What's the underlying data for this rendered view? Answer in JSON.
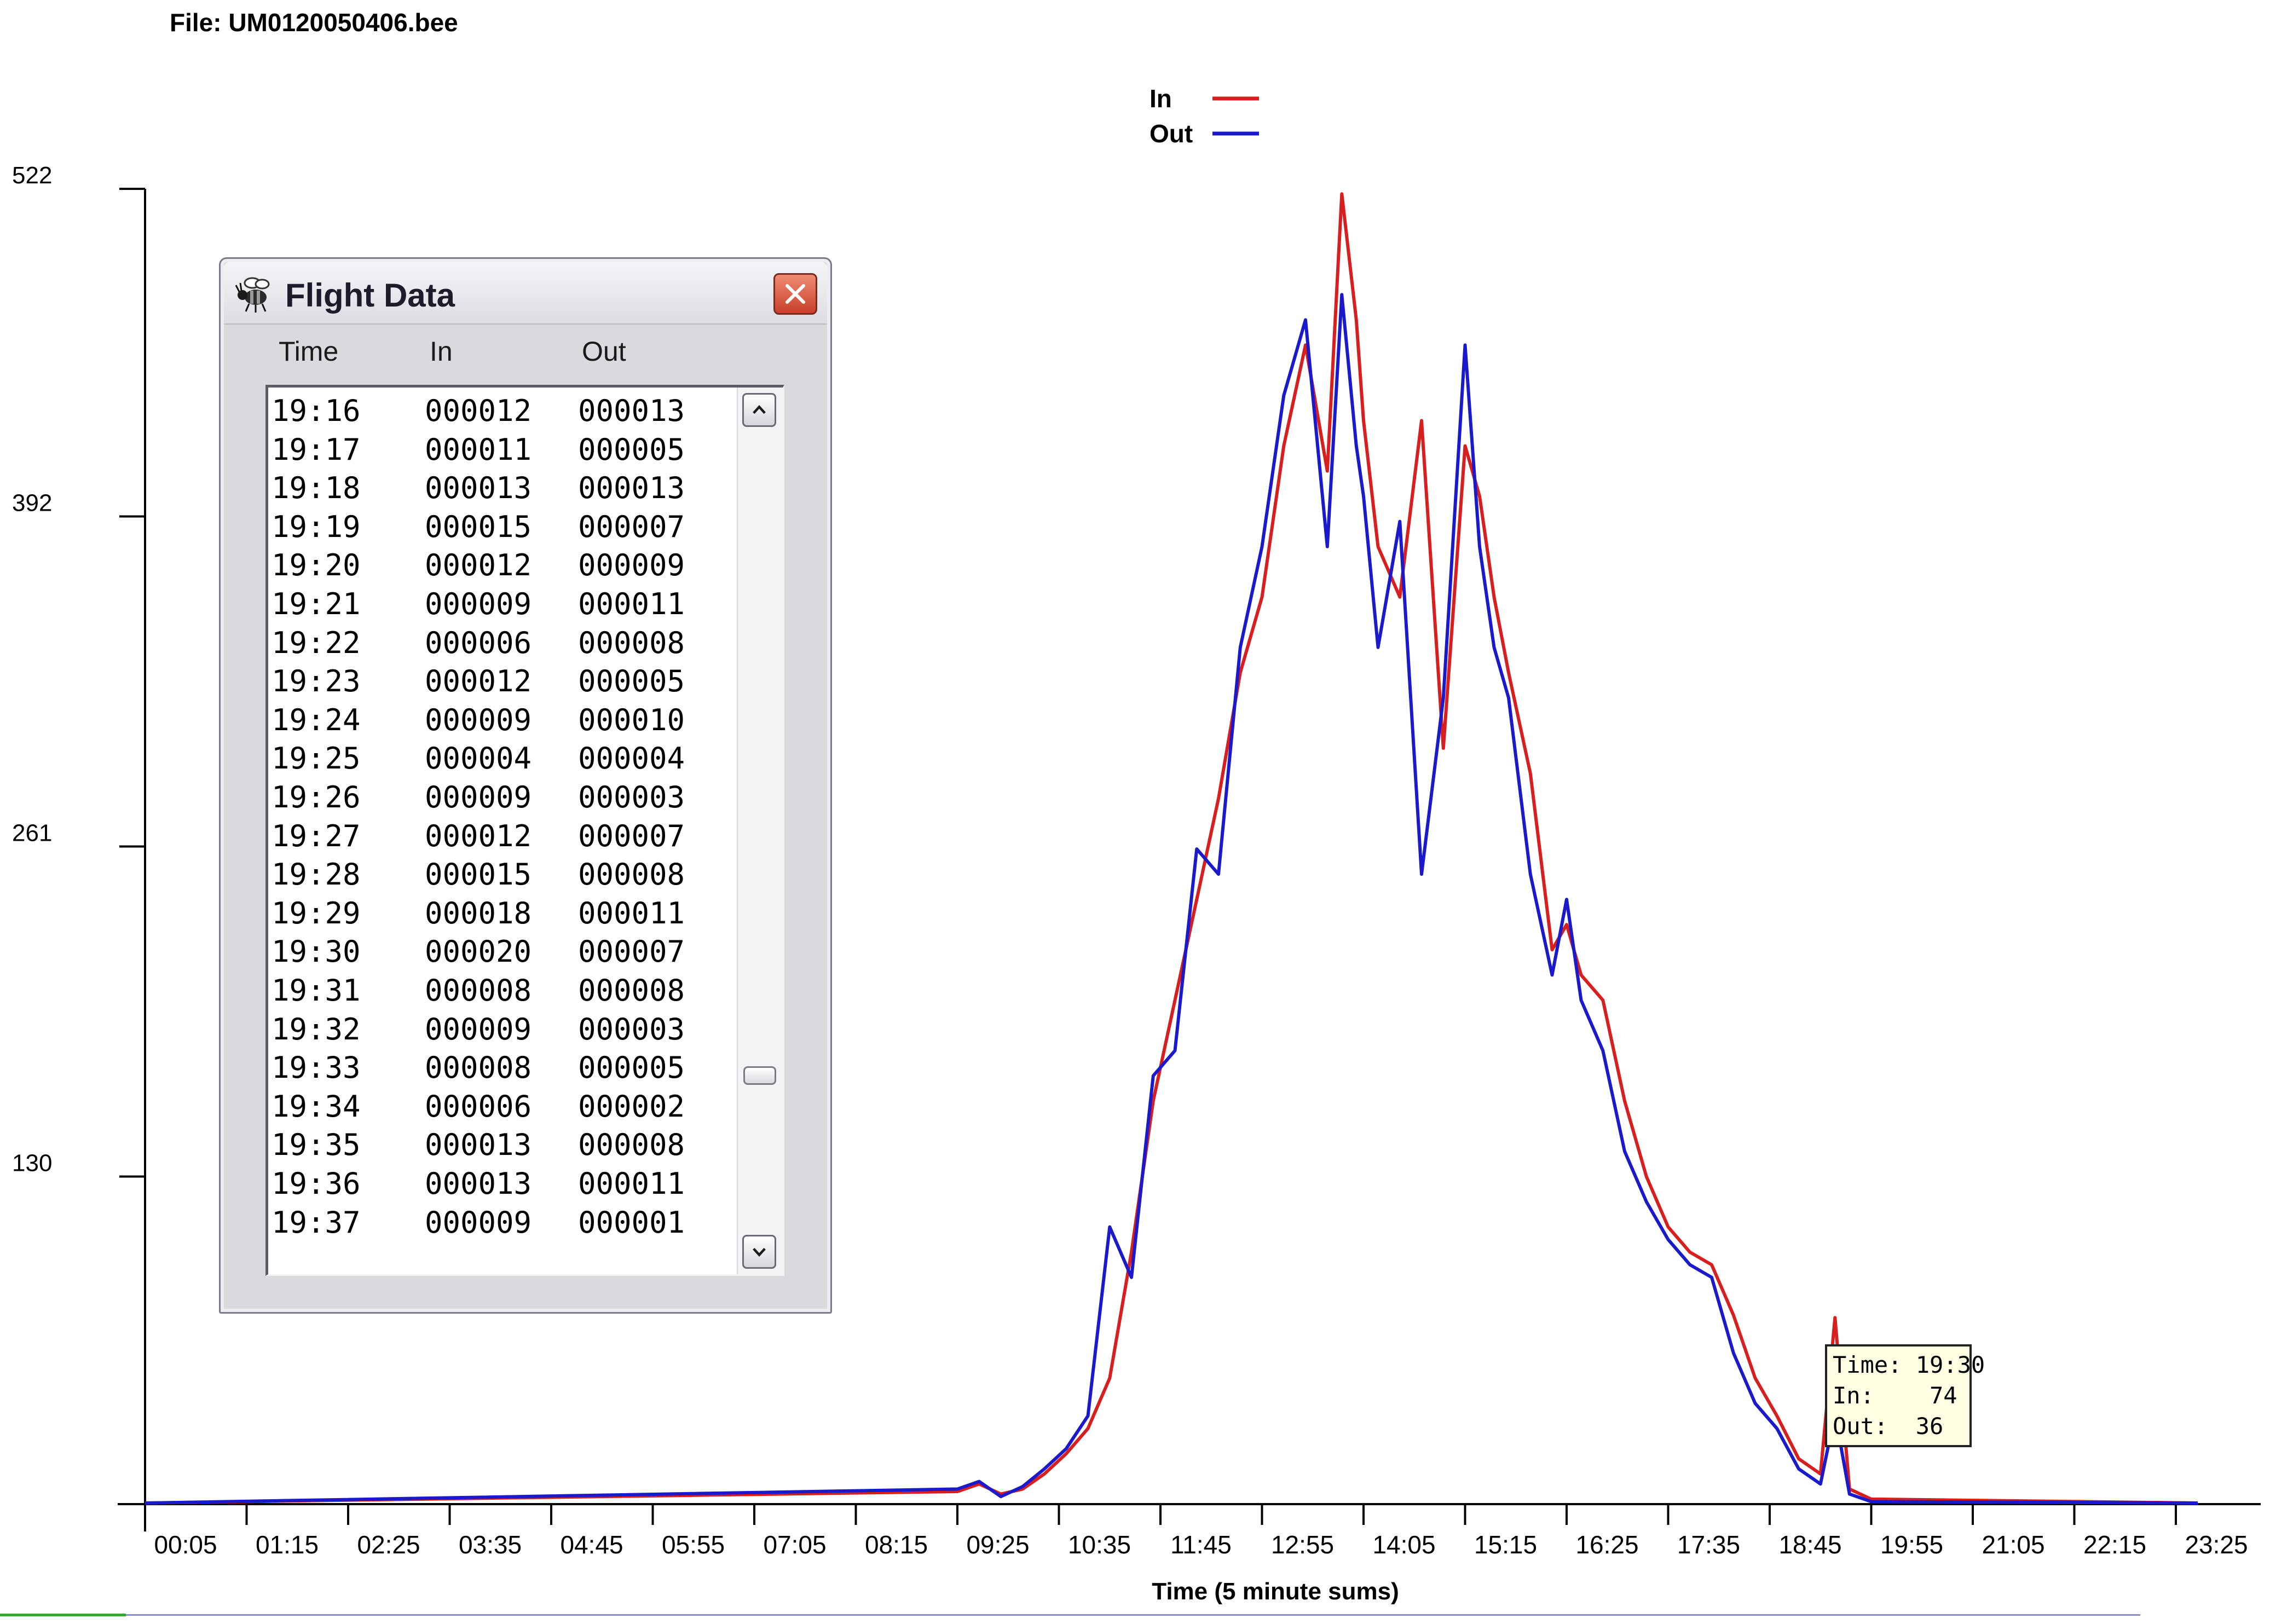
{
  "file_label": "File: UM0120050406.bee",
  "chart_data": {
    "type": "line",
    "xlabel": "Time (5 minute sums)",
    "ylabel": "",
    "y_ticks": [
      130,
      261,
      392,
      522
    ],
    "ylim": [
      0,
      522
    ],
    "x_ticks": [
      "00:05",
      "01:15",
      "02:25",
      "03:35",
      "04:45",
      "05:55",
      "07:05",
      "08:15",
      "09:25",
      "10:35",
      "11:45",
      "12:55",
      "14:05",
      "15:15",
      "16:25",
      "17:35",
      "18:45",
      "19:55",
      "21:05",
      "22:15",
      "23:25"
    ],
    "legend_position": "top-center",
    "series": [
      {
        "name": "In",
        "color": "#d81e1e",
        "x": [
          "09:25",
          "09:40",
          "09:55",
          "10:10",
          "10:25",
          "10:40",
          "10:55",
          "11:10",
          "11:25",
          "11:40",
          "11:55",
          "12:10",
          "12:25",
          "12:40",
          "12:55",
          "13:10",
          "13:25",
          "13:40",
          "13:50",
          "14:00",
          "14:05",
          "14:15",
          "14:30",
          "14:45",
          "15:00",
          "15:15",
          "15:25",
          "15:35",
          "15:45",
          "16:00",
          "16:15",
          "16:25",
          "16:35",
          "16:50",
          "17:05",
          "17:20",
          "17:35",
          "17:50",
          "18:05",
          "18:20",
          "18:35",
          "18:50",
          "19:05",
          "19:20",
          "19:30",
          "19:40",
          "19:55"
        ],
        "values": [
          5,
          8,
          4,
          6,
          12,
          20,
          30,
          50,
          100,
          160,
          200,
          240,
          280,
          330,
          360,
          420,
          460,
          410,
          520,
          470,
          430,
          380,
          360,
          430,
          300,
          420,
          400,
          360,
          330,
          290,
          220,
          230,
          210,
          200,
          160,
          130,
          110,
          100,
          95,
          75,
          50,
          35,
          18,
          12,
          74,
          6,
          2
        ]
      },
      {
        "name": "Out",
        "color": "#1a1acc",
        "x": [
          "09:25",
          "09:40",
          "09:55",
          "10:10",
          "10:25",
          "10:40",
          "10:55",
          "11:10",
          "11:25",
          "11:40",
          "11:55",
          "12:10",
          "12:25",
          "12:40",
          "12:55",
          "13:10",
          "13:25",
          "13:40",
          "13:50",
          "14:00",
          "14:05",
          "14:15",
          "14:30",
          "14:45",
          "15:00",
          "15:15",
          "15:25",
          "15:35",
          "15:45",
          "16:00",
          "16:15",
          "16:25",
          "16:35",
          "16:50",
          "17:05",
          "17:20",
          "17:35",
          "17:50",
          "18:05",
          "18:20",
          "18:35",
          "18:50",
          "19:05",
          "19:20",
          "19:30",
          "19:40",
          "19:55"
        ],
        "values": [
          6,
          9,
          3,
          7,
          14,
          22,
          35,
          110,
          90,
          170,
          180,
          260,
          250,
          340,
          380,
          440,
          470,
          380,
          480,
          420,
          400,
          340,
          390,
          250,
          320,
          460,
          380,
          340,
          320,
          250,
          210,
          240,
          200,
          180,
          140,
          120,
          105,
          95,
          90,
          60,
          40,
          30,
          14,
          8,
          36,
          4,
          1
        ]
      }
    ]
  },
  "window": {
    "title": "Flight Data",
    "columns": {
      "time": "Time",
      "in": "In",
      "out": "Out"
    },
    "rows": [
      {
        "time": "19:16",
        "in": "000012",
        "out": "000013"
      },
      {
        "time": "19:17",
        "in": "000011",
        "out": "000005"
      },
      {
        "time": "19:18",
        "in": "000013",
        "out": "000013"
      },
      {
        "time": "19:19",
        "in": "000015",
        "out": "000007"
      },
      {
        "time": "19:20",
        "in": "000012",
        "out": "000009"
      },
      {
        "time": "19:21",
        "in": "000009",
        "out": "000011"
      },
      {
        "time": "19:22",
        "in": "000006",
        "out": "000008"
      },
      {
        "time": "19:23",
        "in": "000012",
        "out": "000005"
      },
      {
        "time": "19:24",
        "in": "000009",
        "out": "000010"
      },
      {
        "time": "19:25",
        "in": "000004",
        "out": "000004"
      },
      {
        "time": "19:26",
        "in": "000009",
        "out": "000003"
      },
      {
        "time": "19:27",
        "in": "000012",
        "out": "000007"
      },
      {
        "time": "19:28",
        "in": "000015",
        "out": "000008"
      },
      {
        "time": "19:29",
        "in": "000018",
        "out": "000011"
      },
      {
        "time": "19:30",
        "in": "000020",
        "out": "000007"
      },
      {
        "time": "19:31",
        "in": "000008",
        "out": "000008"
      },
      {
        "time": "19:32",
        "in": "000009",
        "out": "000003"
      },
      {
        "time": "19:33",
        "in": "000008",
        "out": "000005"
      },
      {
        "time": "19:34",
        "in": "000006",
        "out": "000002"
      },
      {
        "time": "19:35",
        "in": "000013",
        "out": "000008"
      },
      {
        "time": "19:36",
        "in": "000013",
        "out": "000011"
      },
      {
        "time": "19:37",
        "in": "000009",
        "out": "000001"
      }
    ]
  },
  "tooltip": {
    "time": "Time: 19:30",
    "in": "In:    74",
    "out": "Out:  36"
  }
}
